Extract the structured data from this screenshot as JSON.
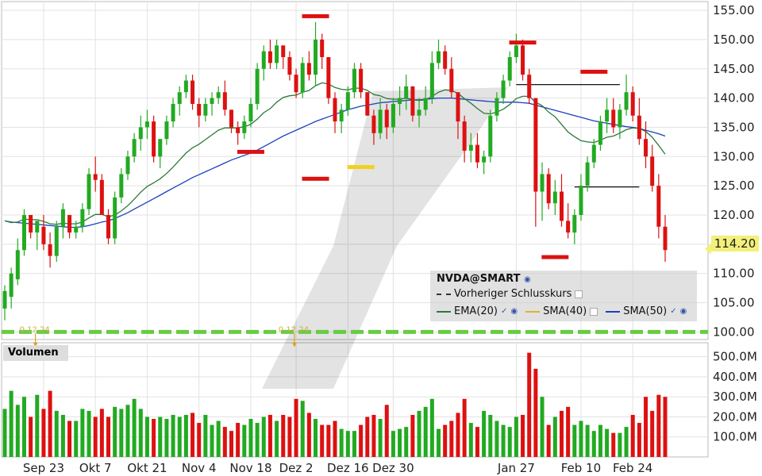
{
  "ticker_label": "NVDA@SMART",
  "current_price": "114.20",
  "volume_title": "Volumen",
  "legend": {
    "prev_close": "Vorheriger Schlusskurs",
    "ema20": "EMA(20)",
    "sma40": "SMA(40)",
    "sma50": "SMA(50)"
  },
  "colors": {
    "up": "#22aa22",
    "down": "#dd1111",
    "ema20": "#2a7a3a",
    "sma40": "#e0b030",
    "sma50": "#1a40c0",
    "prev_close": "#66cc44",
    "badge": "#f2f07a"
  },
  "chart_data": {
    "type": "candlestick",
    "price_axis": {
      "min": 100,
      "max": 155,
      "ticks": [
        "155.00",
        "150.00",
        "145.00",
        "140.00",
        "135.00",
        "130.00",
        "125.00",
        "120.00",
        "115.00",
        "110.00",
        "105.00",
        "100.00"
      ]
    },
    "volume_axis": {
      "min": 0,
      "max": 500,
      "ticks": [
        "500.0M",
        "400.0M",
        "300.0M",
        "200.0M",
        "100.0M"
      ]
    },
    "x_labels": [
      "Sep 23",
      "Okt 7",
      "Okt 21",
      "Nov 4",
      "Nov 18",
      "Dez 2",
      "Dez 16",
      "Dez 30",
      "Jan 27",
      "Feb 10",
      "Feb 24"
    ],
    "x_label_index": [
      6,
      14,
      22,
      30,
      38,
      45,
      53,
      60,
      79,
      89,
      97
    ],
    "candles": [
      [
        104,
        108,
        102,
        107,
        240
      ],
      [
        106,
        111,
        104,
        110,
        330
      ],
      [
        109,
        116,
        108,
        114,
        260
      ],
      [
        114,
        121,
        113,
        120,
        300
      ],
      [
        120,
        120,
        116,
        117,
        200
      ],
      [
        117,
        119,
        114,
        119,
        310
      ],
      [
        118,
        120,
        114,
        115,
        240
      ],
      [
        115,
        117,
        111,
        113,
        330
      ],
      [
        113,
        119,
        112,
        118,
        230
      ],
      [
        118,
        122,
        116,
        121,
        210
      ],
      [
        120,
        120,
        116,
        117,
        180
      ],
      [
        117,
        119,
        116,
        118,
        180
      ],
      [
        118,
        122,
        117,
        121,
        240
      ],
      [
        121,
        128,
        120,
        127,
        230
      ],
      [
        127,
        130,
        124,
        126,
        200
      ],
      [
        126,
        127,
        120,
        120,
        240
      ],
      [
        120,
        121,
        115,
        116,
        200
      ],
      [
        116,
        124,
        115,
        123,
        250
      ],
      [
        123,
        128,
        122,
        127,
        240
      ],
      [
        127,
        131,
        126,
        130,
        260
      ],
      [
        130,
        134,
        129,
        133,
        290
      ],
      [
        133,
        137,
        131,
        135,
        240
      ],
      [
        135,
        138,
        133,
        136,
        200
      ],
      [
        136,
        137,
        129,
        130,
        190
      ],
      [
        130,
        133,
        128,
        133,
        200
      ],
      [
        133,
        137,
        132,
        136,
        190
      ],
      [
        136,
        140,
        135,
        139,
        210
      ],
      [
        139,
        142,
        137,
        141,
        200
      ],
      [
        141,
        144,
        140,
        143,
        210
      ],
      [
        143,
        144,
        138,
        139,
        220
      ],
      [
        139,
        140,
        135,
        137,
        170
      ],
      [
        137,
        140,
        136,
        139,
        210
      ],
      [
        139,
        141,
        137,
        140,
        160
      ],
      [
        140,
        142,
        139,
        141,
        180
      ],
      [
        141,
        143,
        137,
        138,
        150
      ],
      [
        138,
        138,
        134,
        135,
        130
      ],
      [
        135,
        136,
        132,
        134,
        170
      ],
      [
        134,
        137,
        133,
        136,
        160
      ],
      [
        136,
        140,
        135,
        139,
        190
      ],
      [
        139,
        146,
        138,
        145,
        170
      ],
      [
        145,
        149,
        143,
        148,
        200
      ],
      [
        148,
        150,
        145,
        146,
        210
      ],
      [
        146,
        150,
        145,
        149,
        180
      ],
      [
        149,
        149,
        145,
        147,
        210
      ],
      [
        147,
        148,
        143,
        144,
        200
      ],
      [
        144,
        145,
        140,
        141,
        290
      ],
      [
        141,
        147,
        140,
        146,
        280
      ],
      [
        146,
        148,
        143,
        144,
        220
      ],
      [
        144,
        153,
        142,
        150,
        190
      ],
      [
        150,
        151,
        145,
        147,
        160
      ],
      [
        147,
        147,
        139,
        140,
        160
      ],
      [
        140,
        141,
        134,
        136,
        180
      ],
      [
        136,
        139,
        134,
        138,
        140
      ],
      [
        138,
        142,
        137,
        141,
        130
      ],
      [
        141,
        146,
        140,
        145,
        130
      ],
      [
        145,
        146,
        140,
        141,
        160
      ],
      [
        141,
        141,
        137,
        137,
        200
      ],
      [
        137,
        138,
        132,
        134,
        210
      ],
      [
        134,
        140,
        133,
        138,
        190
      ],
      [
        138,
        139,
        133,
        135,
        260
      ],
      [
        135,
        140,
        134,
        139,
        130
      ],
      [
        139,
        142,
        137,
        140,
        140
      ],
      [
        140,
        144,
        138,
        142,
        150
      ],
      [
        142,
        142,
        136,
        137,
        210
      ],
      [
        137,
        140,
        135,
        138,
        230
      ],
      [
        138,
        142,
        137,
        140,
        250
      ],
      [
        140,
        148,
        139,
        146,
        290
      ],
      [
        146,
        150,
        145,
        148,
        140
      ],
      [
        148,
        149,
        144,
        145,
        160
      ],
      [
        145,
        147,
        140,
        141,
        180
      ],
      [
        141,
        141,
        133,
        136,
        220
      ],
      [
        136,
        137,
        129,
        131,
        290
      ],
      [
        131,
        134,
        129,
        132,
        170
      ],
      [
        132,
        134,
        128,
        129,
        150
      ],
      [
        129,
        131,
        127,
        130,
        230
      ],
      [
        130,
        138,
        129,
        137,
        210
      ],
      [
        137,
        141,
        136,
        140,
        180
      ],
      [
        140,
        144,
        139,
        143,
        160
      ],
      [
        143,
        148,
        142,
        147,
        150
      ],
      [
        147,
        151,
        146,
        149,
        200
      ],
      [
        149,
        150,
        143,
        144,
        210
      ],
      [
        144,
        145,
        139,
        140,
        520
      ],
      [
        140,
        140,
        118,
        124,
        440
      ],
      [
        124,
        129,
        119,
        127,
        300
      ],
      [
        127,
        128,
        121,
        122,
        160
      ],
      [
        122,
        126,
        120,
        124,
        200
      ],
      [
        124,
        127,
        118,
        119,
        230
      ],
      [
        119,
        122,
        116,
        117,
        250
      ],
      [
        117,
        121,
        115,
        120,
        160
      ],
      [
        120,
        127,
        119,
        125,
        180
      ],
      [
        125,
        130,
        124,
        129,
        160
      ],
      [
        129,
        133,
        128,
        132,
        130
      ],
      [
        132,
        137,
        131,
        136,
        160
      ],
      [
        136,
        140,
        134,
        138,
        140
      ],
      [
        138,
        140,
        134,
        135,
        120
      ],
      [
        135,
        139,
        133,
        138,
        120
      ],
      [
        138,
        144,
        137,
        141,
        150
      ],
      [
        141,
        142,
        136,
        137,
        210
      ],
      [
        137,
        140,
        132,
        133,
        170
      ],
      [
        133,
        136,
        128,
        130,
        300
      ],
      [
        130,
        132,
        124,
        125,
        230
      ],
      [
        125,
        127,
        116,
        118,
        310
      ],
      [
        118,
        120,
        112,
        114,
        300
      ]
    ],
    "ema20": [
      119,
      118.7,
      118.8,
      119.3,
      119.2,
      119.2,
      118.9,
      118.5,
      118.4,
      118.6,
      118.5,
      118.5,
      118.8,
      119.5,
      120.1,
      120.1,
      119.7,
      120,
      120.7,
      121.6,
      122.7,
      123.9,
      124.9,
      125.5,
      126.2,
      127.1,
      128.2,
      129.4,
      130.6,
      131.5,
      132.1,
      132.9,
      133.7,
      134.5,
      134.9,
      134.9,
      134.9,
      135.1,
      135.5,
      136.4,
      137.5,
      138.2,
      139.3,
      140.1,
      140.4,
      140.5,
      141,
      141.3,
      142.1,
      142.6,
      142.4,
      141.8,
      141.5,
      141.4,
      141.7,
      141.7,
      141.3,
      140.6,
      140.4,
      139.9,
      139.8,
      139.8,
      140,
      139.7,
      139.6,
      139.7,
      140.3,
      141,
      141.4,
      141.3,
      140.8,
      139.9,
      139.1,
      138.2,
      137.4,
      137.3,
      137.6,
      138.1,
      138.9,
      139.9,
      140.3,
      140.3,
      139.3,
      138.7,
      137.6,
      136.8,
      135.5,
      134.2,
      133.4,
      132.7,
      132.5,
      132.4,
      132.8,
      133.3,
      133.5,
      134,
      134.6,
      134.9,
      134.8,
      134.3,
      133.3,
      131.9,
      130.4
    ],
    "sma50": [
      119,
      118.8,
      118.7,
      118.6,
      118.5,
      118.4,
      118.3,
      118.2,
      118.1,
      118,
      117.9,
      117.9,
      118,
      118.2,
      118.5,
      118.8,
      119,
      119.4,
      119.9,
      120.4,
      121,
      121.6,
      122.2,
      122.8,
      123.4,
      124,
      124.6,
      125.2,
      125.8,
      126.4,
      126.9,
      127.4,
      127.9,
      128.4,
      128.9,
      129.4,
      129.8,
      130.2,
      130.6,
      131.1,
      131.7,
      132.3,
      132.9,
      133.5,
      134,
      134.5,
      135,
      135.5,
      136,
      136.4,
      136.8,
      137.2,
      137.6,
      138,
      138.3,
      138.6,
      138.8,
      139,
      139.2,
      139.3,
      139.4,
      139.5,
      139.6,
      139.7,
      139.7,
      139.8,
      139.9,
      140,
      140,
      140,
      139.9,
      139.8,
      139.7,
      139.6,
      139.5,
      139.4,
      139.3,
      139.3,
      139.3,
      139.3,
      139.2,
      139.1,
      138.8,
      138.5,
      138.2,
      137.9,
      137.6,
      137.3,
      137,
      136.7,
      136.4,
      136.1,
      135.9,
      135.7,
      135.5,
      135.3,
      135.1,
      135,
      134.8,
      134.5,
      134.2,
      133.9,
      133.5
    ],
    "annotations": {
      "high_marks": [
        [
          48,
          154
        ],
        [
          80,
          149.5
        ],
        [
          91,
          144.5
        ]
      ],
      "low_marks": [
        [
          38,
          130.8
        ],
        [
          48,
          126.2
        ],
        [
          85,
          112.8
        ]
      ],
      "yellow_mark": [
        55,
        128.2
      ],
      "hlines": [
        [
          79,
          95,
          142.3
        ],
        [
          88,
          98,
          124.8
        ]
      ],
      "prev_close_level": 100,
      "arrow_markers": [
        [
          4,
          "0.12.24"
        ],
        [
          44,
          "0.12.24"
        ]
      ]
    }
  }
}
